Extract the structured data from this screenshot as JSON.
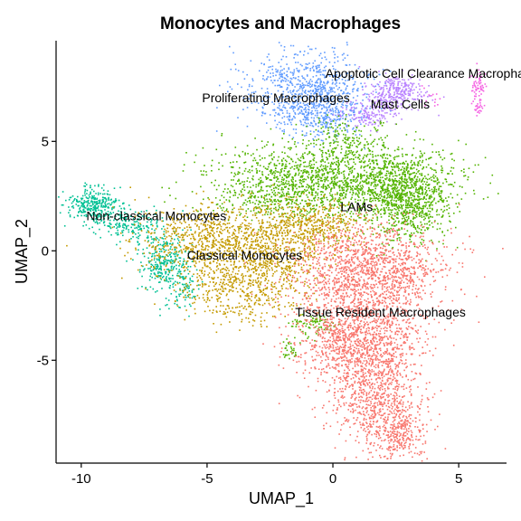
{
  "chart_data": {
    "type": "scatter",
    "title": "Monocytes and Macrophages",
    "xlabel": "UMAP_1",
    "ylabel": "UMAP_2",
    "xlim": [
      -11,
      6.9
    ],
    "ylim": [
      -9.7,
      9.6
    ],
    "x_ticks": [
      -10,
      -5,
      0,
      5
    ],
    "x_tick_labels": [
      "-10",
      "-5",
      "0",
      "5"
    ],
    "y_ticks": [
      -5,
      0,
      5
    ],
    "y_tick_labels": [
      "-5",
      "0",
      "5"
    ],
    "grid": false,
    "legend": "none",
    "series": [
      {
        "name": "Apoptotic Cell Clearance Macrophages",
        "color": "#F564E3",
        "label_position": [
          -0.3,
          7.9
        ],
        "clusters": [
          {
            "center": [
              5.8,
              7.6
            ],
            "spread": [
              0.15,
              0.35
            ],
            "count": 60
          },
          {
            "center": [
              5.8,
              6.6
            ],
            "spread": [
              0.12,
              0.2
            ],
            "count": 30
          },
          {
            "center": [
              3.9,
              7.0
            ],
            "spread": [
              0.2,
              0.3
            ],
            "count": 15
          }
        ]
      },
      {
        "name": "Proliferating Macrophages",
        "color": "#619CFF",
        "label_position": [
          -5.2,
          6.8
        ],
        "clusters": [
          {
            "center": [
              -1.0,
              7.4
            ],
            "spread": [
              1.2,
              0.9
            ],
            "count": 750
          },
          {
            "center": [
              -0.5,
              6.2
            ],
            "spread": [
              0.8,
              0.5
            ],
            "count": 250
          }
        ]
      },
      {
        "name": "Mast Cells",
        "color": "#B983FF",
        "label_position": [
          1.5,
          6.5
        ],
        "clusters": [
          {
            "center": [
              2.5,
              7.2
            ],
            "spread": [
              0.6,
              0.4
            ],
            "count": 300
          },
          {
            "center": [
              1.5,
              6.2
            ],
            "spread": [
              0.6,
              0.3
            ],
            "count": 150
          }
        ]
      },
      {
        "name": "LAMs",
        "color": "#53B400",
        "label_position": [
          0.3,
          1.8
        ],
        "clusters": [
          {
            "center": [
              0.0,
              3.3
            ],
            "spread": [
              2.2,
              0.8
            ],
            "count": 1500
          },
          {
            "center": [
              3.0,
              2.4
            ],
            "spread": [
              0.9,
              1.0
            ],
            "count": 900
          },
          {
            "center": [
              0.5,
              5.0
            ],
            "spread": [
              0.8,
              0.5
            ],
            "count": 150
          },
          {
            "center": [
              -2.5,
              2.3
            ],
            "spread": [
              1.0,
              0.5
            ],
            "count": 200
          },
          {
            "center": [
              -0.8,
              -3.4
            ],
            "spread": [
              0.5,
              0.3
            ],
            "count": 80
          },
          {
            "center": [
              -1.7,
              -4.5
            ],
            "spread": [
              0.15,
              0.25
            ],
            "count": 30
          }
        ]
      },
      {
        "name": "Non-classical Monocytes",
        "color": "#00C094",
        "label_position": [
          -9.8,
          1.4
        ],
        "clusters": [
          {
            "center": [
              -9.5,
              2.1
            ],
            "spread": [
              0.5,
              0.4
            ],
            "count": 300
          },
          {
            "center": [
              -8.1,
              1.3
            ],
            "spread": [
              0.7,
              0.4
            ],
            "count": 200
          },
          {
            "center": [
              -6.7,
              -0.5
            ],
            "spread": [
              0.5,
              0.7
            ],
            "count": 300
          },
          {
            "center": [
              -6.0,
              -1.8
            ],
            "spread": [
              0.4,
              0.5
            ],
            "count": 80
          }
        ]
      },
      {
        "name": "Classical Monocytes",
        "color": "#C49A00",
        "label_position": [
          -5.8,
          -0.4
        ],
        "clusters": [
          {
            "center": [
              -4.5,
              0.4
            ],
            "spread": [
              1.6,
              0.8
            ],
            "count": 900
          },
          {
            "center": [
              -3.5,
              -1.7
            ],
            "spread": [
              1.3,
              0.8
            ],
            "count": 500
          },
          {
            "center": [
              -1.0,
              1.2
            ],
            "spread": [
              1.2,
              0.6
            ],
            "count": 500
          },
          {
            "center": [
              -2.0,
              -0.3
            ],
            "spread": [
              0.8,
              0.5
            ],
            "count": 200
          }
        ]
      },
      {
        "name": "Tissue Resident Macrophages",
        "color": "#F8766D",
        "label_position": [
          -1.5,
          -3.0
        ],
        "clusters": [
          {
            "center": [
              1.5,
              -0.8
            ],
            "spread": [
              1.5,
              1.0
            ],
            "count": 1300
          },
          {
            "center": [
              1.0,
              -3.8
            ],
            "spread": [
              1.2,
              1.2
            ],
            "count": 1300
          },
          {
            "center": [
              1.7,
              -6.5
            ],
            "spread": [
              0.9,
              1.2
            ],
            "count": 700
          },
          {
            "center": [
              2.6,
              -8.3
            ],
            "spread": [
              0.6,
              0.7
            ],
            "count": 300
          }
        ]
      }
    ]
  }
}
